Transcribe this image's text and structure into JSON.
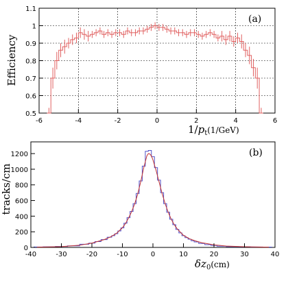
{
  "chart_data": [
    {
      "type": "line",
      "panel_label": "(a)",
      "ylabel": "Efficiency",
      "xlabel_prefix": "1/",
      "xlabel_var": "p",
      "xlabel_sub": "t",
      "xlabel_unit": "(1/GeV)",
      "xlim": [
        -6,
        6
      ],
      "ylim": [
        0.5,
        1.1
      ],
      "xticks": [
        "-6",
        "-4",
        "-2",
        "0",
        "2",
        "4",
        "6"
      ],
      "yticks": [
        "0.5",
        "0.6",
        "0.7",
        "0.8",
        "0.9",
        "1",
        "1.1"
      ],
      "grid": true,
      "colors": {
        "series": "#e06060",
        "frame": "#000000",
        "grid": "#000000"
      },
      "series": [
        {
          "x": [
            -5.5,
            -5.3,
            -5.1,
            -4.9,
            -4.7,
            -4.5,
            -4.3,
            -4.1,
            -3.9,
            -3.7,
            -3.5,
            -3.3,
            -3.1,
            -2.9,
            -2.7,
            -2.5,
            -2.3,
            -2.1,
            -1.9,
            -1.7,
            -1.5,
            -1.3,
            -1.1,
            -0.9,
            -0.7,
            -0.5,
            -0.3,
            -0.1,
            0.1,
            0.3,
            0.5,
            0.7,
            0.9,
            1.1,
            1.3,
            1.5,
            1.7,
            1.9,
            2.1,
            2.3,
            2.5,
            2.7,
            2.9,
            3.1,
            3.3,
            3.5,
            3.7,
            3.9,
            4.1,
            4.3,
            4.5,
            4.7,
            4.9,
            5.1,
            5.3
          ],
          "y": [
            0.5,
            0.7,
            0.8,
            0.86,
            0.88,
            0.9,
            0.92,
            0.93,
            0.96,
            0.95,
            0.94,
            0.95,
            0.96,
            0.97,
            0.95,
            0.96,
            0.95,
            0.96,
            0.96,
            0.95,
            0.97,
            0.96,
            0.96,
            0.97,
            0.97,
            0.98,
            0.99,
            1.0,
            0.99,
            0.99,
            0.98,
            0.97,
            0.97,
            0.96,
            0.96,
            0.95,
            0.96,
            0.96,
            0.95,
            0.94,
            0.95,
            0.96,
            0.95,
            0.93,
            0.94,
            0.92,
            0.94,
            0.91,
            0.93,
            0.91,
            0.86,
            0.83,
            0.76,
            0.7,
            0.5
          ],
          "err": [
            0.03,
            0.06,
            0.05,
            0.04,
            0.04,
            0.03,
            0.03,
            0.03,
            0.03,
            0.03,
            0.03,
            0.02,
            0.02,
            0.02,
            0.02,
            0.02,
            0.02,
            0.02,
            0.02,
            0.02,
            0.02,
            0.02,
            0.02,
            0.02,
            0.02,
            0.02,
            0.02,
            0.02,
            0.02,
            0.02,
            0.02,
            0.02,
            0.02,
            0.02,
            0.02,
            0.02,
            0.02,
            0.02,
            0.02,
            0.02,
            0.02,
            0.02,
            0.02,
            0.02,
            0.03,
            0.03,
            0.03,
            0.03,
            0.03,
            0.04,
            0.04,
            0.05,
            0.05,
            0.06,
            0.03
          ]
        }
      ]
    },
    {
      "type": "line",
      "panel_label": "(b)",
      "ylabel": "tracks/cm",
      "xlabel_delta": "δ",
      "xlabel_var": "z",
      "xlabel_sub": "0",
      "xlabel_unit": "(cm)",
      "xlim": [
        -40,
        40
      ],
      "ylim": [
        0,
        1350
      ],
      "xticks": [
        "-40",
        "-30",
        "-20",
        "-10",
        "0",
        "10",
        "20",
        "30",
        "40"
      ],
      "yticks": [
        "0",
        "200",
        "400",
        "600",
        "800",
        "1000",
        "1200"
      ],
      "grid": false,
      "colors": {
        "histogram": "#5050c8",
        "fit": "#c03030",
        "frame": "#000000"
      },
      "histogram": {
        "x": [
          -38,
          -34,
          -30,
          -26,
          -22,
          -20,
          -18,
          -16,
          -14,
          -13,
          -12,
          -11,
          -10,
          -9,
          -8,
          -7,
          -6,
          -5,
          -4,
          -3,
          -2,
          -1,
          0,
          1,
          2,
          3,
          4,
          5,
          6,
          7,
          8,
          9,
          10,
          11,
          12,
          13,
          14,
          16,
          18,
          20,
          22,
          26,
          30,
          34,
          38
        ],
        "y": [
          5,
          8,
          12,
          20,
          40,
          55,
          75,
          100,
          130,
          150,
          175,
          210,
          250,
          310,
          380,
          460,
          560,
          690,
          850,
          1040,
          1230,
          1240,
          1160,
          1020,
          860,
          700,
          560,
          450,
          360,
          290,
          230,
          185,
          150,
          125,
          105,
          85,
          70,
          50,
          35,
          25,
          15,
          10,
          8,
          6,
          4
        ]
      },
      "fit": {
        "x": [
          -38,
          -30,
          -24,
          -20,
          -16,
          -14,
          -12,
          -10,
          -9,
          -8,
          -7,
          -6,
          -5,
          -4,
          -3,
          -2,
          -1.5,
          -1,
          -0.5,
          0,
          1,
          2,
          3,
          4,
          5,
          6,
          7,
          8,
          10,
          12,
          14,
          16,
          20,
          24,
          30,
          38
        ],
        "y": [
          3,
          10,
          28,
          55,
          100,
          132,
          178,
          252,
          305,
          375,
          455,
          555,
          680,
          840,
          1020,
          1170,
          1200,
          1195,
          1170,
          1120,
          990,
          840,
          690,
          560,
          450,
          360,
          290,
          235,
          155,
          110,
          82,
          60,
          33,
          18,
          9,
          3
        ]
      }
    }
  ]
}
